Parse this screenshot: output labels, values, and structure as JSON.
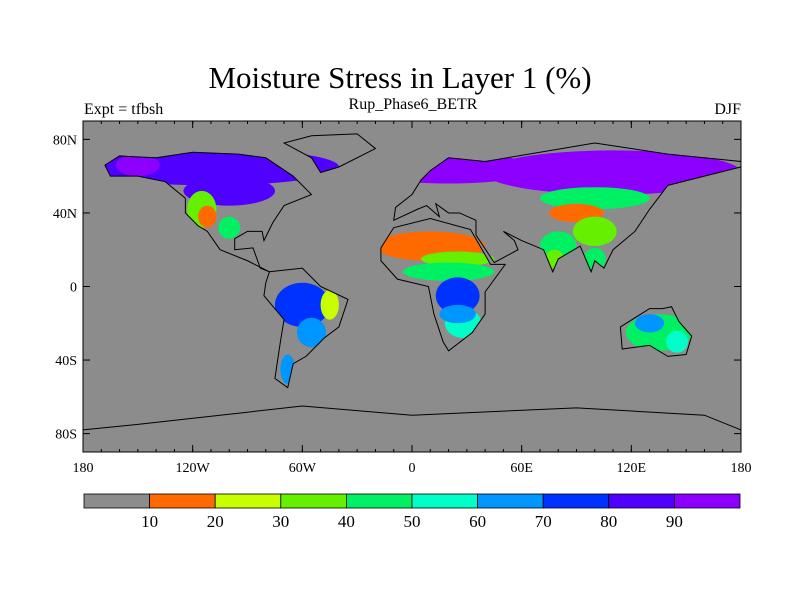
{
  "chart_data": {
    "type": "heatmap",
    "title": "Moisture Stress in Layer 1 (%)",
    "subtitle_left": "Expt = tfbsh",
    "subtitle_center": "Rup_Phase6_BETR",
    "subtitle_right": "DJF",
    "projection": "cylindrical-equidistant",
    "xlim": [
      -180,
      180
    ],
    "ylim": [
      -90,
      90
    ],
    "x_ticks": [
      {
        "value": -180,
        "label": "180"
      },
      {
        "value": -120,
        "label": "120W"
      },
      {
        "value": -60,
        "label": "60W"
      },
      {
        "value": 0,
        "label": "0"
      },
      {
        "value": 60,
        "label": "60E"
      },
      {
        "value": 120,
        "label": "120E"
      },
      {
        "value": 180,
        "label": "180"
      }
    ],
    "y_ticks": [
      {
        "value": 80,
        "label": "80N"
      },
      {
        "value": 40,
        "label": "40N"
      },
      {
        "value": 0,
        "label": "0"
      },
      {
        "value": -40,
        "label": "40S"
      },
      {
        "value": -80,
        "label": "80S"
      }
    ],
    "colorbar": {
      "levels": [
        "10",
        "20",
        "30",
        "40",
        "50",
        "60",
        "70",
        "80",
        "90"
      ],
      "colors": [
        "#8c8c8c",
        "#ff6a00",
        "#c8ff00",
        "#64f000",
        "#00f064",
        "#00ffc8",
        "#0096ff",
        "#0032ff",
        "#5000ff",
        "#8c00ff"
      ]
    },
    "background_color": "#8c8c8c"
  }
}
